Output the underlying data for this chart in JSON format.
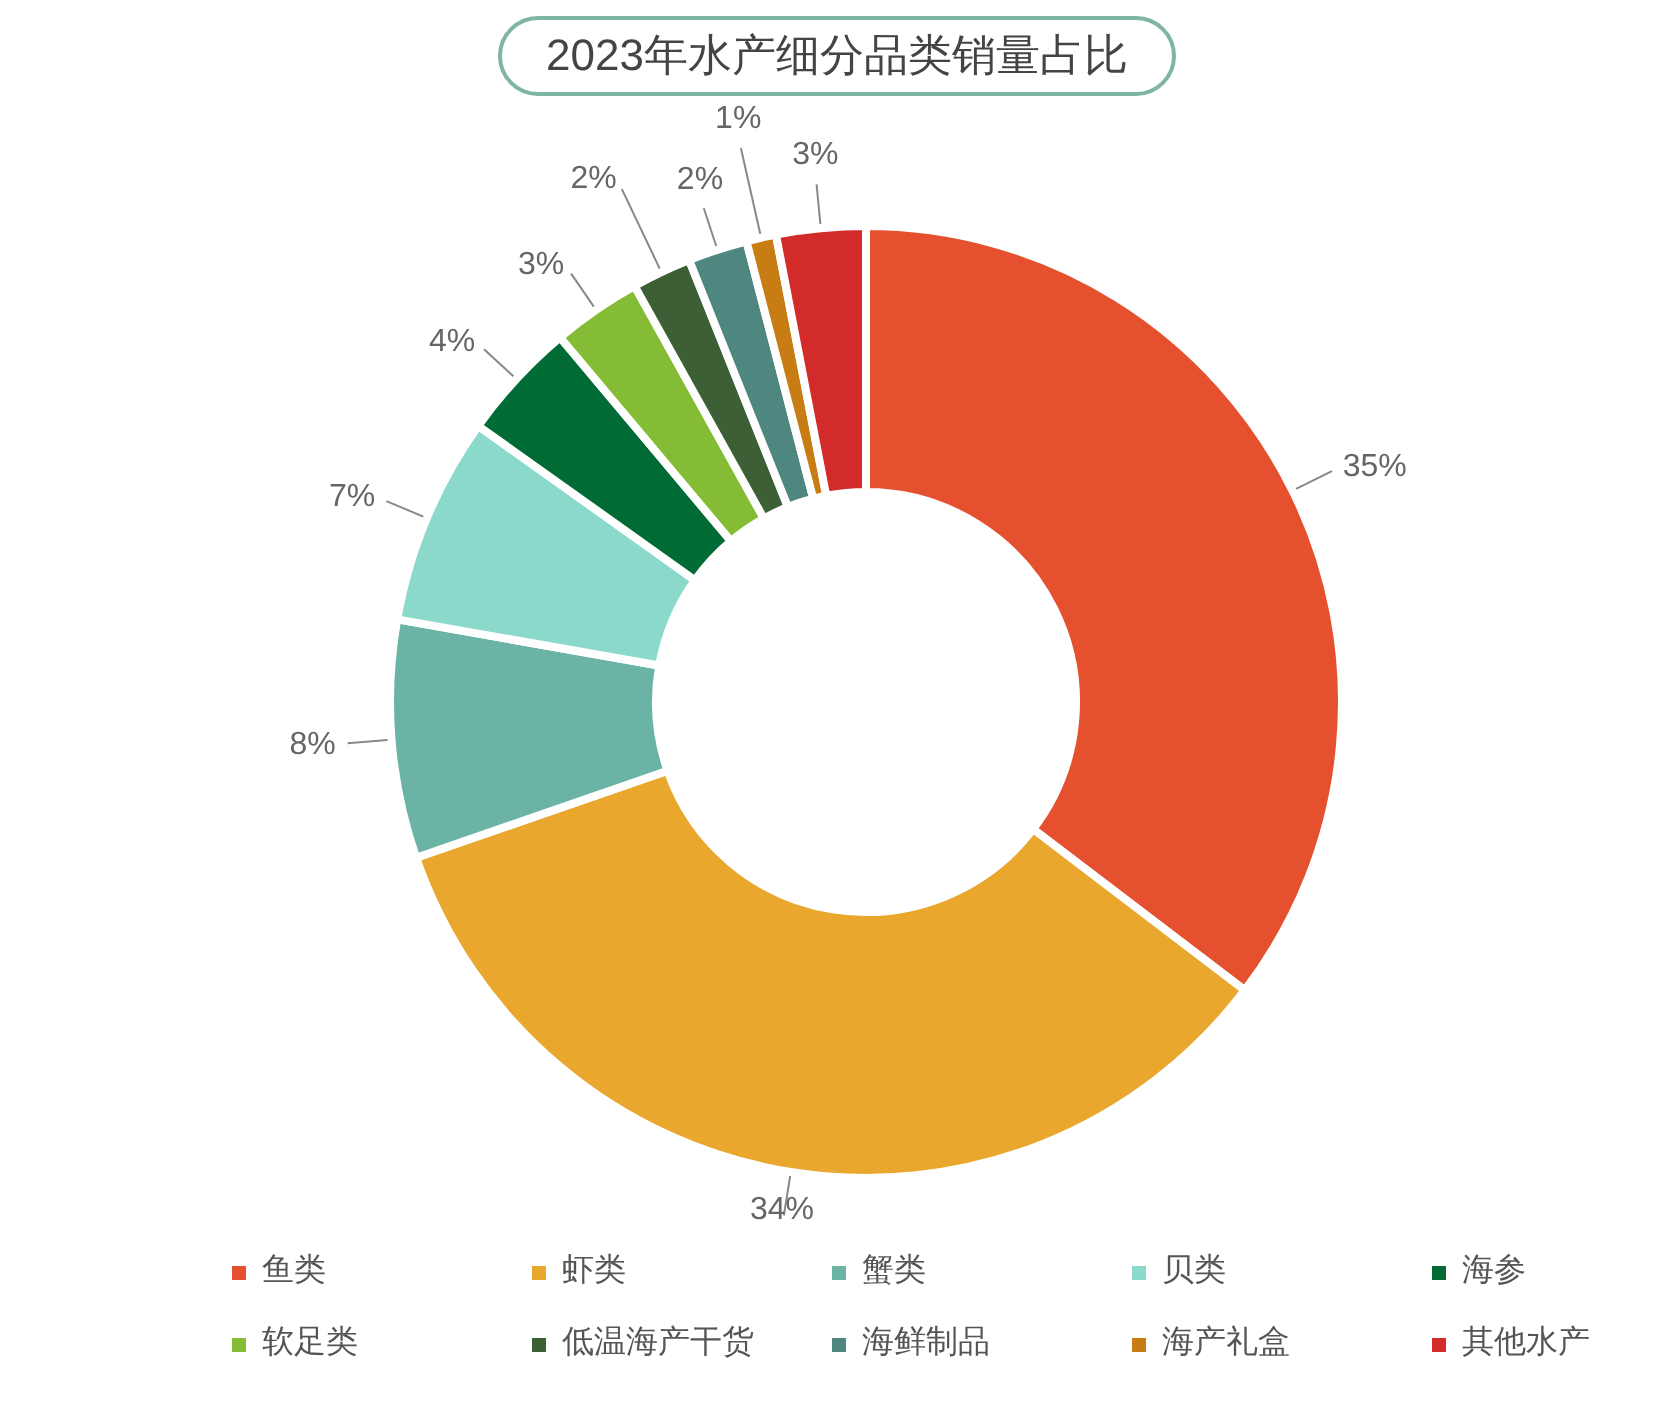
{
  "chart_data": {
    "type": "donut",
    "title": "2023年水产细分品类销量占比",
    "categories": [
      "鱼类",
      "虾类",
      "蟹类",
      "贝类",
      "海参",
      "软足类",
      "低温海产干货",
      "海鲜制品",
      "海产礼盒",
      "其他水产"
    ],
    "values": [
      35,
      34,
      8,
      7,
      4,
      3,
      2,
      2,
      1,
      3
    ],
    "value_labels": [
      "35%",
      "34%",
      "8%",
      "7%",
      "4%",
      "3%",
      "2%",
      "2%",
      "1%",
      "3%"
    ],
    "colors": [
      "#e5512f",
      "#e9a82d",
      "#6bb3a4",
      "#8ad9cb",
      "#006b35",
      "#84bd35",
      "#3c5f35",
      "#4f8680",
      "#c87d14",
      "#d32a2a"
    ],
    "legend": "bottom"
  }
}
